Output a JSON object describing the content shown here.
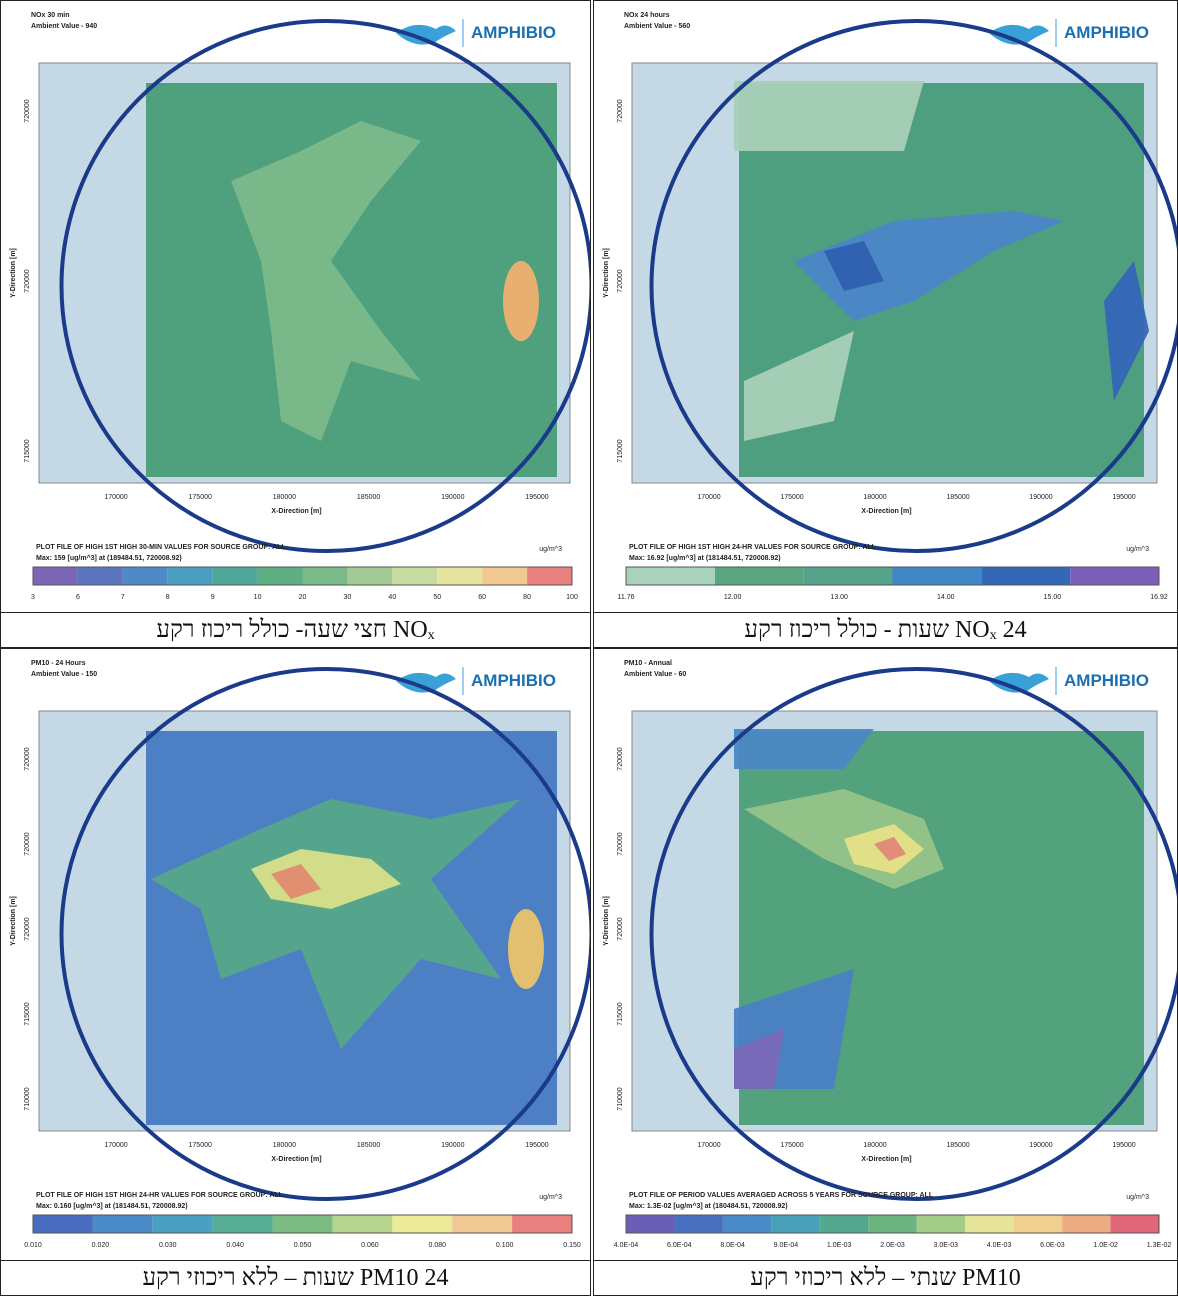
{
  "panels": [
    {
      "header": [
        "NOx 30 min",
        "Ambient Value - 940"
      ],
      "logo": "AMPHIBIO",
      "x_ticks": [
        "170000",
        "175000",
        "180000",
        "185000",
        "190000",
        "195000"
      ],
      "y_ticks": [
        "720000",
        "720000",
        "715000"
      ],
      "x_label": "X-Direction [m]",
      "y_label": "Y-Direction [m]",
      "plot_caption": "PLOT FILE OF HIGH 1ST HIGH 30-MIN VALUES FOR SOURCE GROUP: ALL",
      "max_line": "Max: 159 [ug/m^3] at (189484.51, 720008.92)",
      "units": "ug/m^3",
      "legend_ticks": [
        "3",
        "6",
        "7",
        "8",
        "9",
        "10",
        "20",
        "30",
        "40",
        "50",
        "60",
        "80",
        "100"
      ],
      "caption": "NOₓ חצי שעה- כולל ריכוז רקע"
    },
    {
      "header": [
        "NOx 24 hours",
        "Ambient Value - 560"
      ],
      "logo": "AMPHIBIO",
      "x_ticks": [
        "170000",
        "175000",
        "180000",
        "185000",
        "190000",
        "195000"
      ],
      "y_ticks": [
        "720000",
        "720000",
        "715000"
      ],
      "x_label": "X-Direction [m]",
      "y_label": "Y-Direction [m]",
      "plot_caption": "PLOT FILE OF HIGH 1ST HIGH 24-HR VALUES FOR SOURCE GROUP: ALL",
      "max_line": "Max: 16.92 [ug/m^3] at (181484.51, 720008.92)",
      "units": "ug/m^3",
      "legend_ticks": [
        "11.76",
        "12.00",
        "13.00",
        "14.00",
        "15.00",
        "16.92"
      ],
      "caption": "NOₓ 24 שעות  - כולל ריכוז רקע"
    },
    {
      "header": [
        "PM10 - 24 Hours",
        "Ambient Value - 150"
      ],
      "logo": "AMPHIBIO",
      "x_ticks": [
        "170000",
        "175000",
        "180000",
        "185000",
        "190000",
        "195000"
      ],
      "y_ticks": [
        "720000",
        "720000",
        "720000",
        "715000",
        "710000"
      ],
      "x_label": "X-Direction [m]",
      "y_label": "Y-Direction [m]",
      "plot_caption": "PLOT FILE OF HIGH 1ST HIGH 24-HR VALUES FOR SOURCE GROUP: ALL",
      "max_line": "Max: 0.160 [ug/m^3] at (181484.51, 720008.92)",
      "units": "ug/m^3",
      "legend_ticks": [
        "0.010",
        "0.020",
        "0.030",
        "0.040",
        "0.050",
        "0.060",
        "0.080",
        "0.100",
        "0.150"
      ],
      "caption": "PM10 24 שעות – ללא ריכוזי רקע"
    },
    {
      "header": [
        "PM10 - Annual",
        "Ambient Value - 60"
      ],
      "logo": "AMPHIBIO",
      "x_ticks": [
        "170000",
        "175000",
        "180000",
        "185000",
        "190000",
        "195000"
      ],
      "y_ticks": [
        "720000",
        "720000",
        "720000",
        "715000",
        "710000"
      ],
      "x_label": "X-Direction [m]",
      "y_label": "Y-Direction [m]",
      "plot_caption": "PLOT FILE OF PERIOD VALUES AVERAGED ACROSS 5 YEARS FOR SOURCE GROUP: ALL",
      "max_line": "Max: 1.3E-02 [ug/m^3] at (180484.51, 720008.92)",
      "units": "ug/m^3",
      "legend_ticks": [
        "4.0E-04",
        "6.0E-04",
        "8.0E-04",
        "9.0E-04",
        "1.0E-03",
        "2.0E-03",
        "3.0E-03",
        "4.0E-03",
        "6.0E-03",
        "1.0E-02",
        "1.3E-02"
      ],
      "caption": "PM10 שנתי – ללא ריכוזי רקע"
    }
  ]
}
